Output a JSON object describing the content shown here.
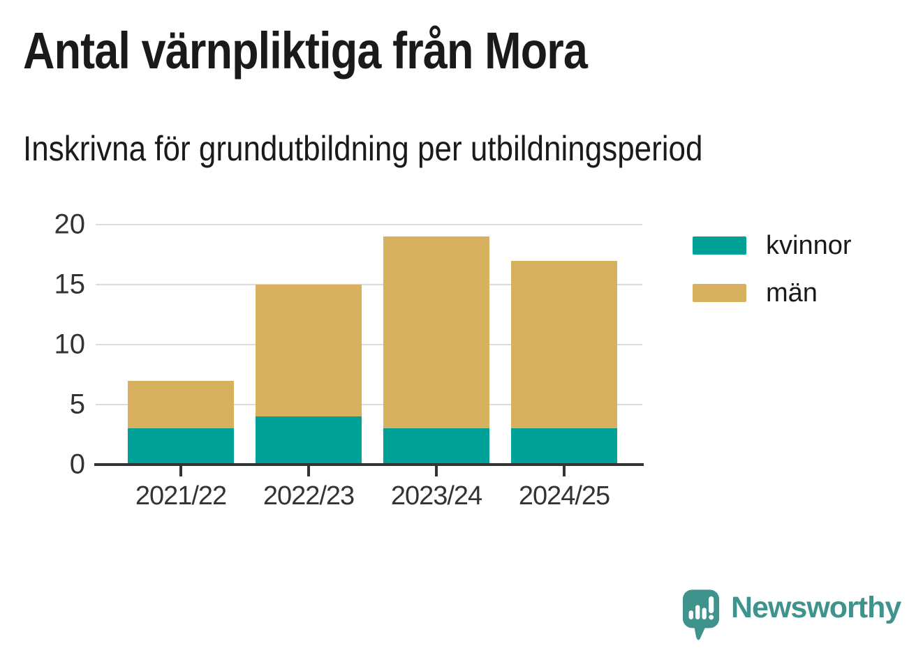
{
  "header": {
    "title": "Antal värnpliktiga från Mora",
    "subtitle": "Inskrivna för grundutbildning per utbildningsperiod"
  },
  "chart_data": {
    "type": "bar",
    "stacked": true,
    "title": "Antal värnpliktiga från Mora",
    "subtitle": "Inskrivna för grundutbildning per utbildningsperiod",
    "categories": [
      "2021/22",
      "2022/23",
      "2023/24",
      "2024/25"
    ],
    "series": [
      {
        "key": "kvinnor",
        "name": "kvinnor",
        "color": "#00a197",
        "values": [
          3,
          4,
          3,
          3
        ]
      },
      {
        "key": "man",
        "name": "män",
        "color": "#d8b160",
        "values": [
          4,
          11,
          16,
          14
        ]
      }
    ],
    "totals": [
      7,
      15,
      19,
      17
    ],
    "xlabel": "",
    "ylabel": "",
    "ylim": [
      0,
      20
    ],
    "yticks": [
      0,
      5,
      10,
      15,
      20
    ],
    "grid": true,
    "legend_position": "right-top"
  },
  "branding": {
    "logo_text": "Newsworthy",
    "logo_color": "#3e948d",
    "logo_icon": "speech-bubble-bar-chart-icon"
  },
  "colors": {
    "series_kvinnor": "#00a197",
    "series_man": "#d8b160",
    "axis": "#333333",
    "gridline": "#dcdcdc",
    "text": "#1a1a1a",
    "background": "#ffffff"
  }
}
